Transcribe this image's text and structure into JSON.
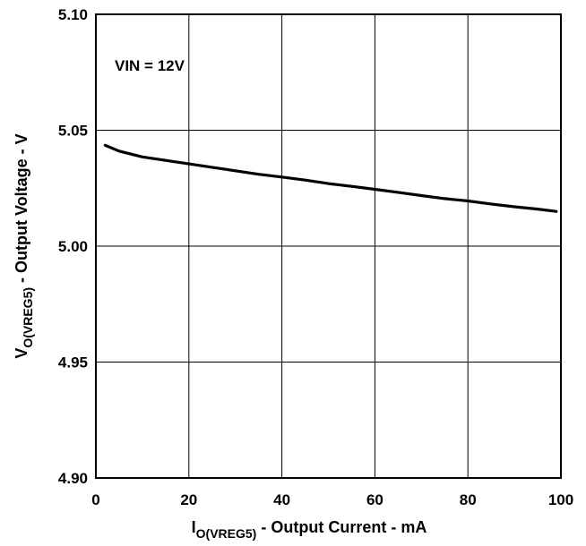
{
  "chart_data": {
    "type": "line",
    "title": "",
    "xlim": [
      0,
      100
    ],
    "ylim": [
      4.9,
      5.1
    ],
    "x_ticks": [
      "0",
      "20",
      "40",
      "60",
      "80",
      "100"
    ],
    "y_ticks": [
      "5.10",
      "5.05",
      "5.00",
      "4.95",
      "4.90"
    ],
    "xlabel": {
      "main": "I",
      "sub": "O(VREG5)",
      "rest": " - Output Current  - mA"
    },
    "ylabel": {
      "main": "V",
      "sub": "O(VREG5)",
      "rest": " - Output Voltage - V"
    },
    "annotation": "VIN = 12V",
    "grid": true,
    "series": [
      {
        "x": [
          2,
          5,
          10,
          15,
          20,
          25,
          30,
          35,
          40,
          45,
          50,
          55,
          60,
          65,
          70,
          75,
          80,
          85,
          90,
          95,
          99
        ],
        "y": [
          5.0435,
          5.041,
          5.0385,
          5.037,
          5.0355,
          5.034,
          5.0325,
          5.031,
          5.0298,
          5.0285,
          5.027,
          5.0258,
          5.0245,
          5.0232,
          5.0218,
          5.0205,
          5.0195,
          5.0182,
          5.017,
          5.016,
          5.015
        ]
      }
    ]
  }
}
